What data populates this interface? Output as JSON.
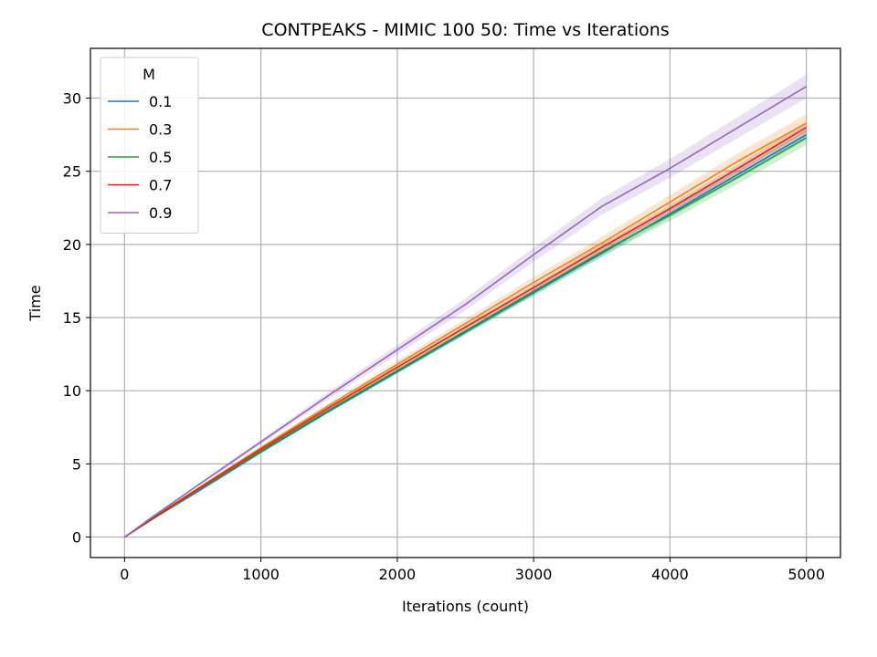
{
  "chart_data": {
    "type": "line",
    "title": "CONTPEAKS - MIMIC 100 50: Time vs Iterations",
    "xlabel": "Iterations (count)",
    "ylabel": "Time",
    "xlim": [
      -250,
      5250
    ],
    "ylim": [
      -1.4,
      33.4
    ],
    "xticks": [
      0,
      1000,
      2000,
      3000,
      4000,
      5000
    ],
    "yticks": [
      0,
      5,
      10,
      15,
      20,
      25,
      30
    ],
    "grid": true,
    "legend": {
      "title": "M",
      "position": "top-left"
    },
    "x": [
      0,
      200,
      500,
      1000,
      1500,
      2000,
      2500,
      3000,
      3500,
      4000,
      4500,
      5000
    ],
    "series": [
      {
        "name": "0.1",
        "color": "#1f77b4",
        "values": [
          0.0,
          1.2,
          2.9,
          5.8,
          8.6,
          11.3,
          14.0,
          16.7,
          19.4,
          22.1,
          24.8,
          27.5
        ],
        "band": 0.35
      },
      {
        "name": "0.3",
        "color": "#ff7f0e",
        "values": [
          0.0,
          1.3,
          3.1,
          6.1,
          9.0,
          11.8,
          14.6,
          17.4,
          20.1,
          22.9,
          25.7,
          28.3
        ],
        "band": 0.6
      },
      {
        "name": "0.5",
        "color": "#2ca02c",
        "values": [
          0.0,
          1.2,
          3.0,
          5.9,
          8.7,
          11.4,
          14.1,
          16.8,
          19.5,
          22.0,
          24.6,
          27.3
        ],
        "band": 0.5
      },
      {
        "name": "0.7",
        "color": "#d62728",
        "values": [
          0.0,
          1.25,
          3.05,
          6.0,
          8.85,
          11.6,
          14.35,
          17.05,
          19.8,
          22.45,
          25.2,
          28.0
        ],
        "band": 0.3
      },
      {
        "name": "0.9",
        "color": "#9467bd",
        "values": [
          0.0,
          1.35,
          3.3,
          6.5,
          9.7,
          12.8,
          15.9,
          19.3,
          22.6,
          25.2,
          28.0,
          30.8
        ],
        "band": 0.8
      }
    ]
  }
}
